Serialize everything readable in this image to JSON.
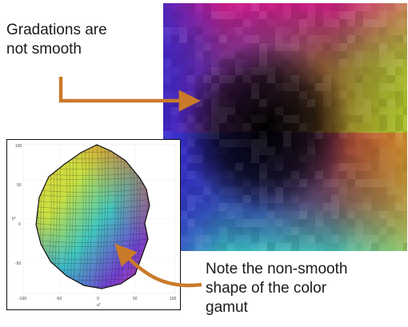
{
  "annotations": {
    "top_note": "Gradations are\nnot smooth",
    "bottom_note": "Note the non-smooth\nshape of the color\ngamut"
  },
  "gamut_plot": {
    "x_ticks": [
      "-100",
      "-50",
      "0",
      "50",
      "100"
    ],
    "y_ticks": [
      "100",
      "50",
      "0",
      "-50"
    ],
    "xlabel": "a*",
    "ylabel": "b*"
  },
  "colors": {
    "arrow": "#c97a2a",
    "text": "#1a1a1a",
    "frame": "#111111"
  }
}
